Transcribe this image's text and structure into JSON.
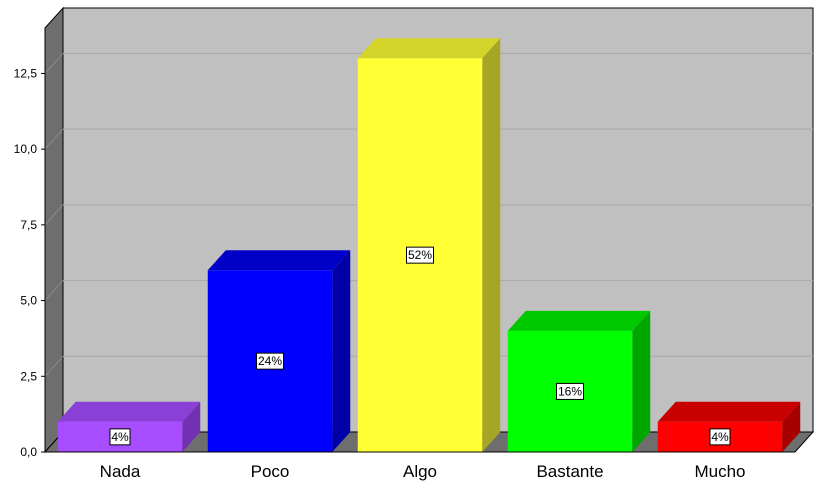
{
  "chart_data": {
    "type": "bar",
    "title": "",
    "xlabel": "",
    "ylabel": "",
    "categories": [
      "Nada",
      "Poco",
      "Algo",
      "Bastante",
      "Mucho"
    ],
    "values": [
      1,
      6,
      13,
      4,
      1
    ],
    "data_labels": [
      "4%",
      "24%",
      "52%",
      "16%",
      "4%"
    ],
    "colors": [
      "#a64dff",
      "#0000ff",
      "#ffff33",
      "#00ff00",
      "#ff0000"
    ],
    "side_colors": [
      "#7330b3",
      "#0000a6",
      "#a6a626",
      "#00a600",
      "#a60000"
    ],
    "top_colors": [
      "#8a3fd6",
      "#0000c8",
      "#d4d42a",
      "#00c800",
      "#c80000"
    ],
    "ylim": [
      0,
      14
    ],
    "yticks": [
      0,
      2.5,
      5,
      7.5,
      10,
      12.5
    ],
    "ytick_labels": [
      "0,0",
      "2,5",
      "5,0",
      "7,5",
      "10,0",
      "12,5"
    ],
    "grid": true,
    "legend": "none",
    "style": "3d",
    "plot_background": "#c0c0c0",
    "wall_color": "#6e6e6e"
  }
}
